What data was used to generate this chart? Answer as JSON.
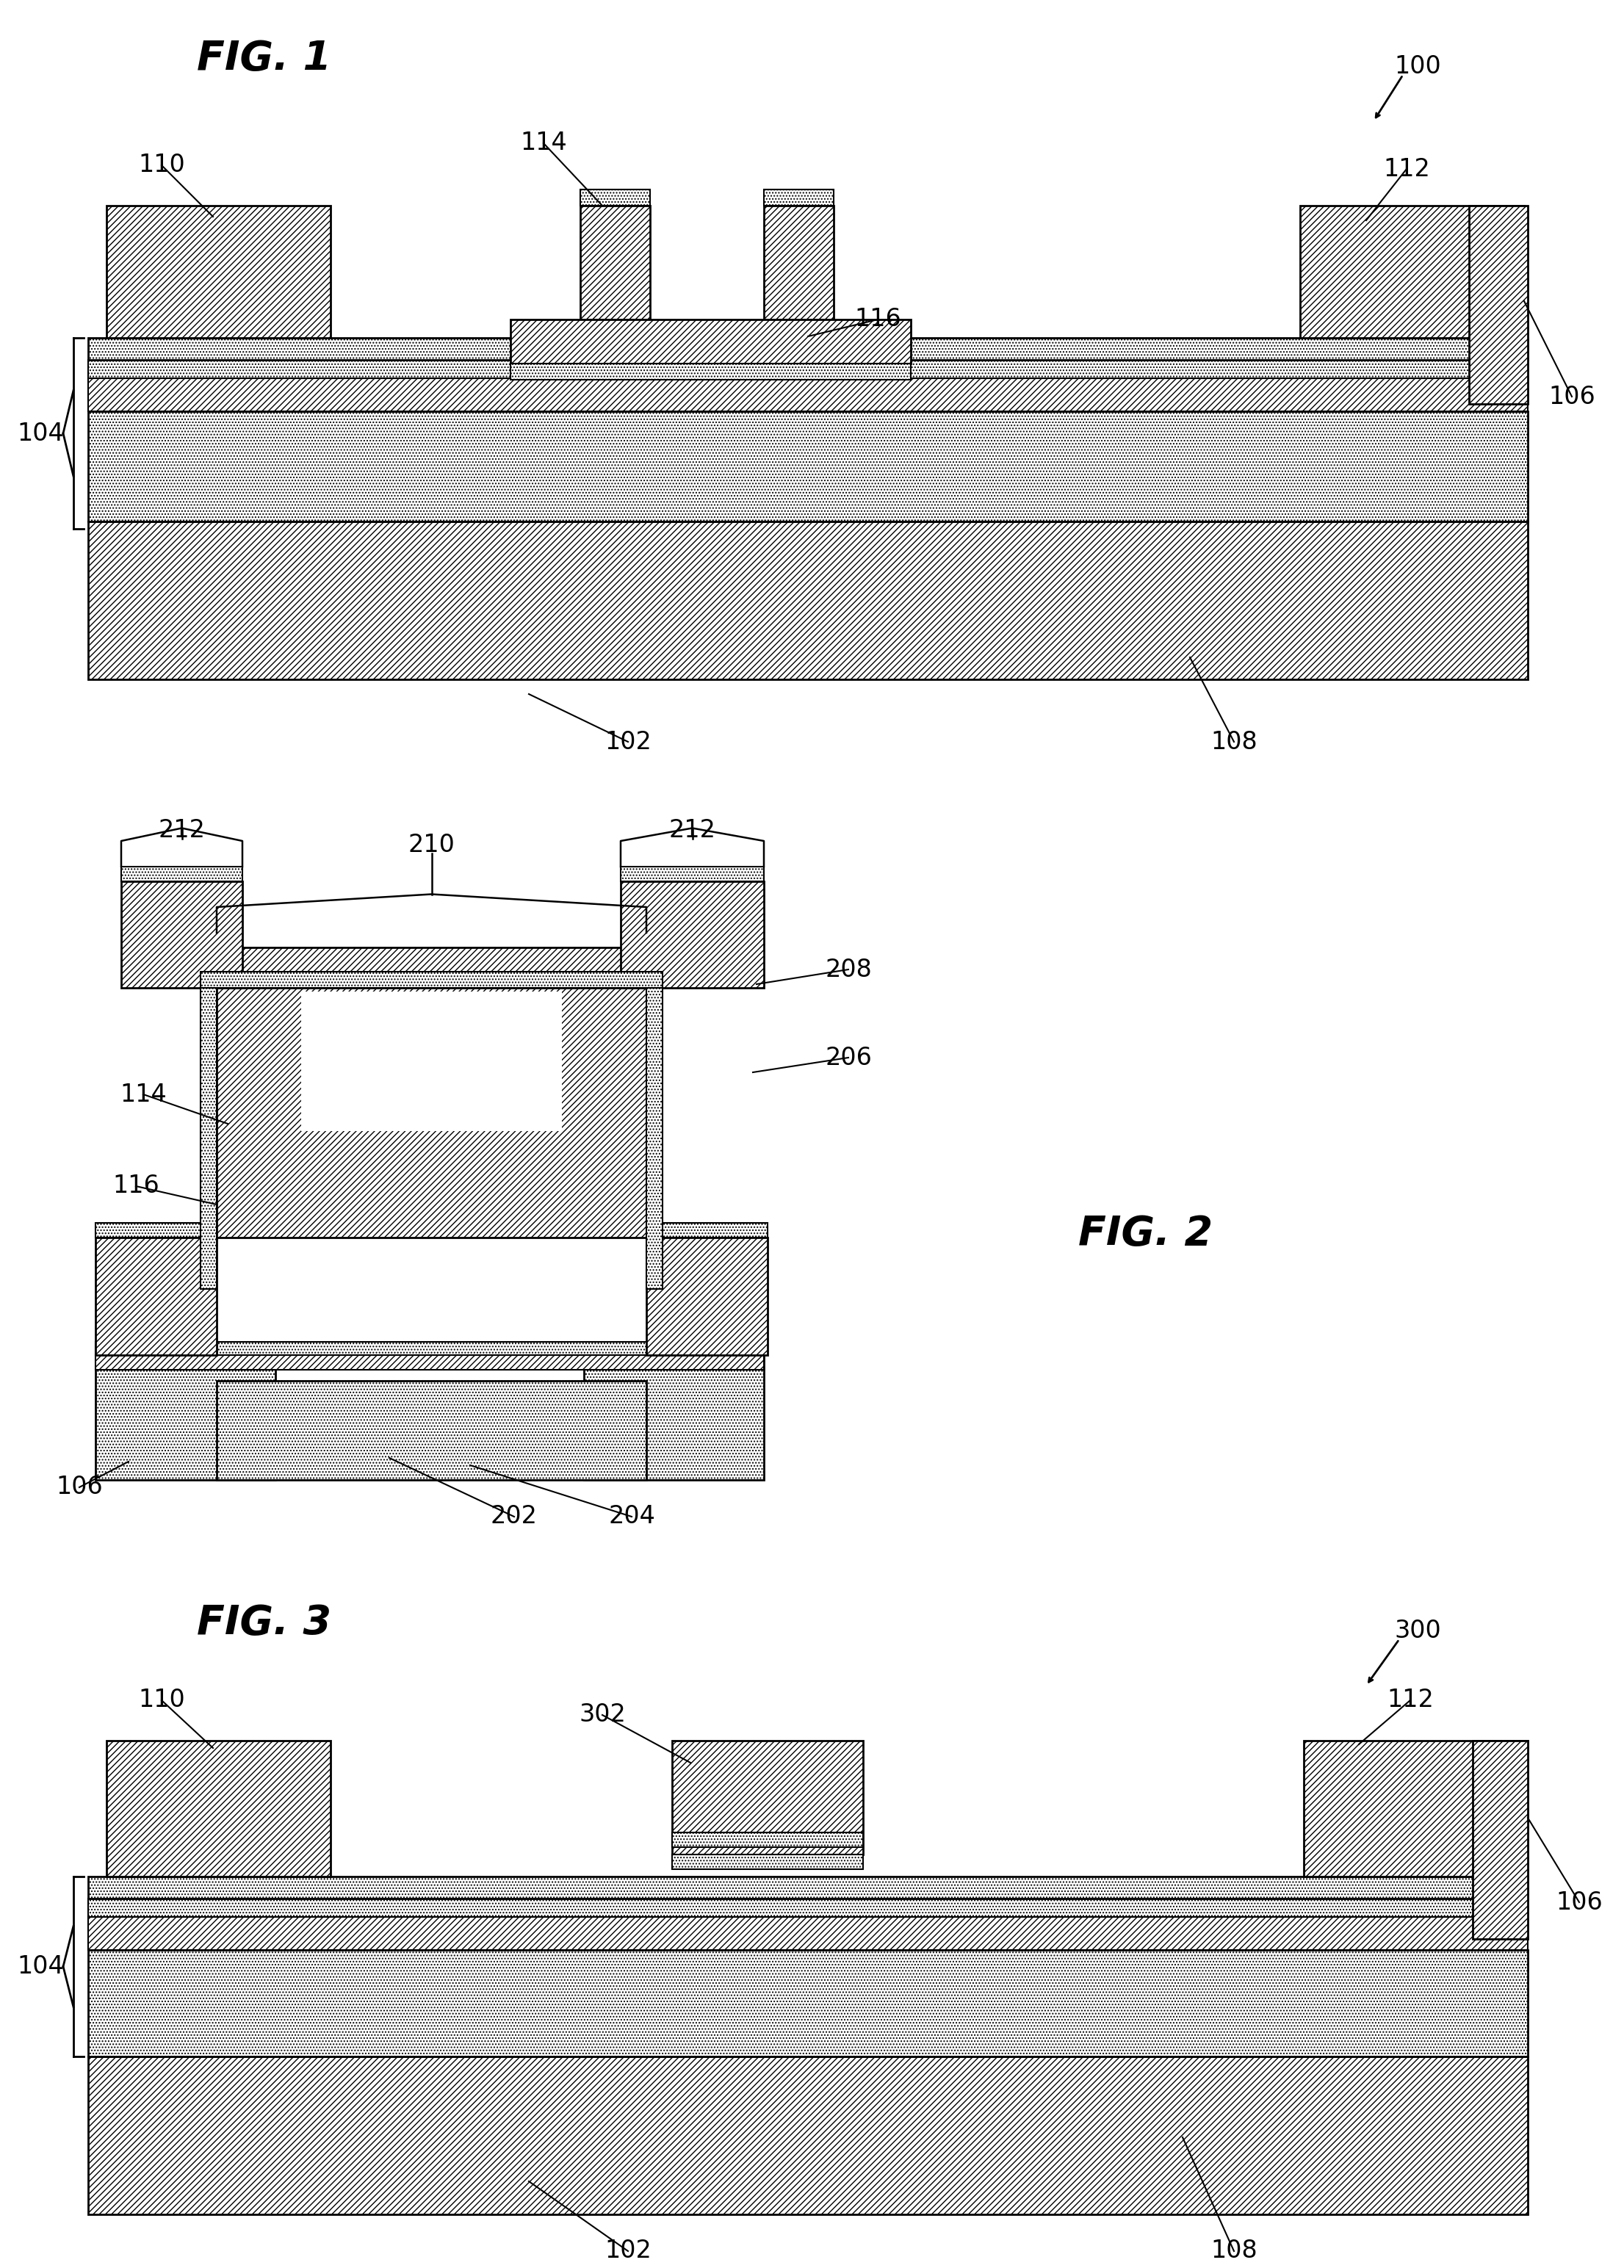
{
  "bg_color": "#ffffff",
  "fig1_title": "FIG. 1",
  "fig2_title": "FIG. 2",
  "fig3_title": "FIG. 3",
  "label_100": "100",
  "label_300": "300",
  "fontsize_title": 40,
  "fontsize_label": 24,
  "lw_main": 2.0,
  "lw_thin": 1.5
}
